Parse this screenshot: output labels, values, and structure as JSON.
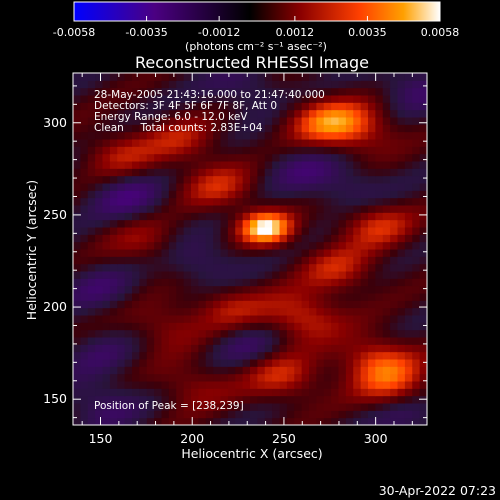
{
  "colorbar": {
    "tick_labels": [
      "-0.0058",
      "-0.0035",
      "-0.0012",
      "0.0012",
      "0.0035",
      "0.0058"
    ],
    "units_label": "(photons cm⁻² s⁻¹ asec⁻²)",
    "colors": [
      "#0000ff",
      "#4b0082",
      "#000000",
      "#8b0000",
      "#ff4000",
      "#ffa000",
      "#ffffff"
    ],
    "range": [
      -0.0058,
      0.0058
    ]
  },
  "chart_data": {
    "type": "heatmap",
    "title": "Reconstructed RHESSI Image",
    "xlabel": "Heliocentric X (arcsec)",
    "ylabel": "Heliocentric Y (arcsec)",
    "xlim": [
      135,
      328
    ],
    "ylim": [
      136,
      327
    ],
    "x_ticks": [
      150,
      200,
      250,
      300
    ],
    "y_ticks": [
      150,
      200,
      250,
      300
    ],
    "x_tick_labels": [
      "150",
      "200",
      "250",
      "300"
    ],
    "y_tick_labels": [
      "150",
      "200",
      "250",
      "300"
    ],
    "peak_position": [
      238,
      239
    ],
    "annotations": [
      "28-May-2005 21:43:16.000 to 21:47:40.000",
      "Detectors: 3F 4F 5F 6F 7F 8F, Att 0",
      "Energy Range: 6.0 - 12.0 keV",
      "Clean     Total counts: 2.83E+04"
    ],
    "peak_label": "Position of Peak = [238,239]",
    "sources": [
      {
        "x": 240,
        "y": 243,
        "amp": 1.0
      },
      {
        "x": 272,
        "y": 301,
        "amp": 0.55
      },
      {
        "x": 290,
        "y": 297,
        "amp": 0.45
      },
      {
        "x": 215,
        "y": 265,
        "amp": 0.4
      },
      {
        "x": 160,
        "y": 283,
        "amp": 0.35
      },
      {
        "x": 195,
        "y": 290,
        "amp": 0.35
      },
      {
        "x": 300,
        "y": 245,
        "amp": 0.45
      },
      {
        "x": 280,
        "y": 220,
        "amp": 0.4
      },
      {
        "x": 175,
        "y": 235,
        "amp": 0.3
      },
      {
        "x": 260,
        "y": 195,
        "amp": 0.5
      },
      {
        "x": 220,
        "y": 200,
        "amp": 0.35
      },
      {
        "x": 185,
        "y": 190,
        "amp": 0.3
      },
      {
        "x": 300,
        "y": 172,
        "amp": 0.5
      },
      {
        "x": 250,
        "y": 162,
        "amp": 0.45
      },
      {
        "x": 310,
        "y": 158,
        "amp": 0.45
      },
      {
        "x": 200,
        "y": 158,
        "amp": 0.3
      },
      {
        "x": 165,
        "y": 260,
        "amp": -0.35
      },
      {
        "x": 150,
        "y": 148,
        "amp": -0.3
      },
      {
        "x": 320,
        "y": 140,
        "amp": -0.25
      },
      {
        "x": 320,
        "y": 320,
        "amp": -0.3
      },
      {
        "x": 230,
        "y": 318,
        "amp": -0.25
      },
      {
        "x": 260,
        "y": 275,
        "amp": -0.25
      },
      {
        "x": 205,
        "y": 225,
        "amp": -0.3
      },
      {
        "x": 285,
        "y": 265,
        "amp": -0.25
      },
      {
        "x": 150,
        "y": 210,
        "amp": -0.25
      },
      {
        "x": 230,
        "y": 180,
        "amp": -0.25
      },
      {
        "x": 150,
        "y": 175,
        "amp": -0.2
      }
    ]
  },
  "timestamp": "30-Apr-2022 07:23"
}
